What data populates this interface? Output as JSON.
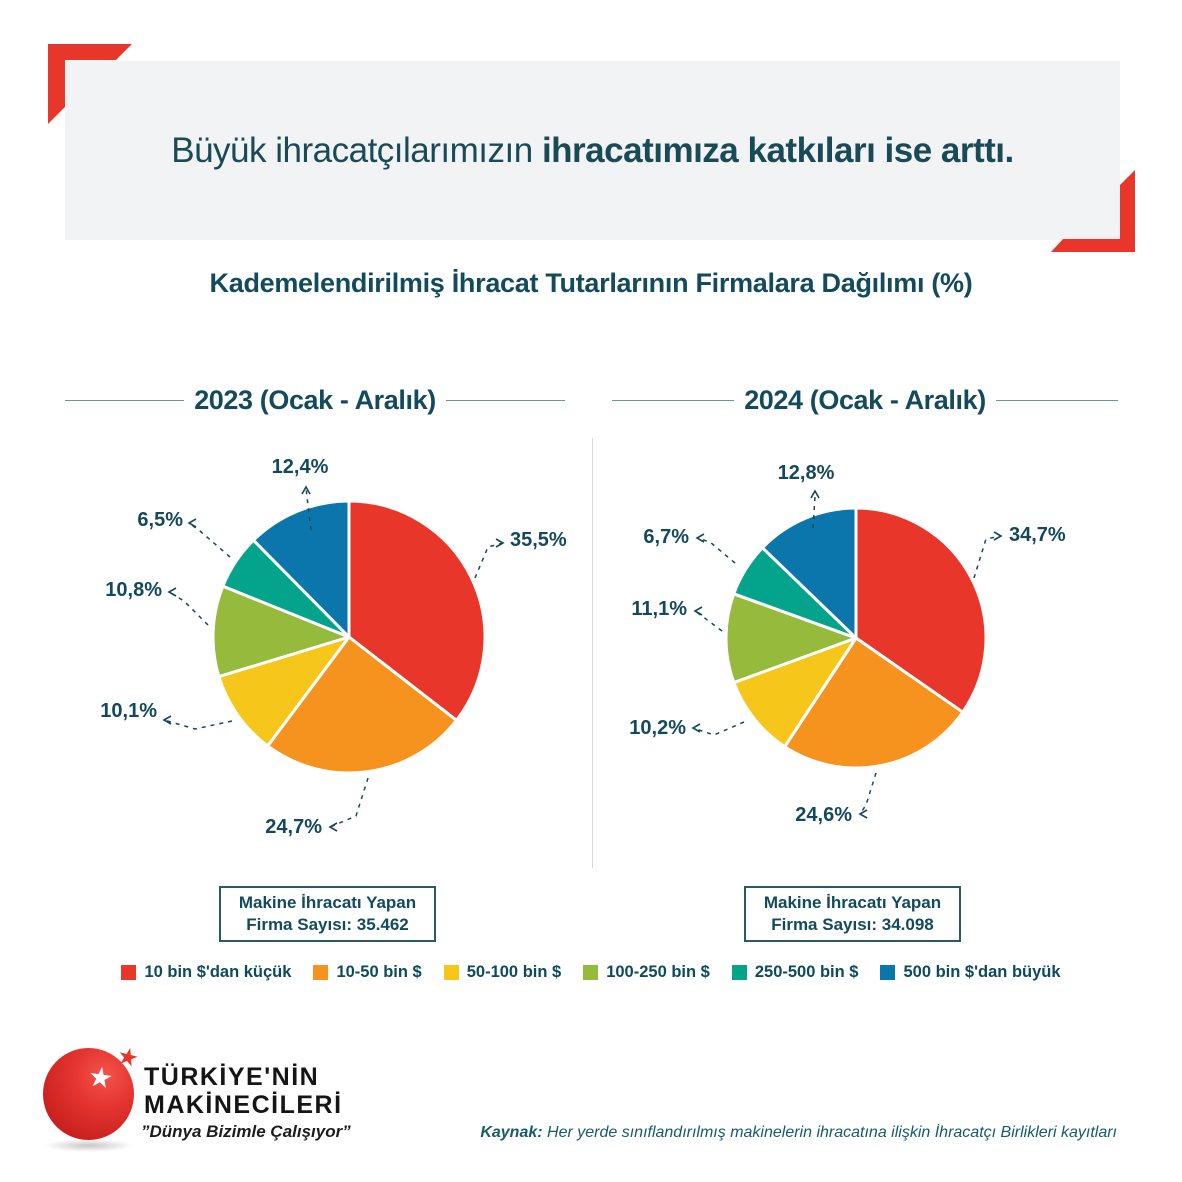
{
  "header": {
    "title_regular": "Büyük ihracatçılarımızın ",
    "title_bold": "ihracatımıza katkıları ise arttı."
  },
  "subtitle": "Kademelendirilmiş İhracat Tutarlarının Firmalara Dağılımı (%)",
  "chart_data": [
    {
      "type": "pie",
      "title": "2023 (Ocak - Aralık)",
      "unit": "%",
      "categories": [
        "10 bin $'dan küçük",
        "10-50 bin $",
        "50-100 bin $",
        "100-250 bin $",
        "250-500 bin $",
        "500 bin $'dan büyük"
      ],
      "values": [
        35.5,
        24.7,
        10.1,
        10.8,
        6.5,
        12.4
      ],
      "labels": [
        "35,5%",
        "24,7%",
        "10,1%",
        "10,8%",
        "6,5%",
        "12,4%"
      ],
      "colors": [
        "#e8362b",
        "#f6921e",
        "#f7c61a",
        "#95ba3c",
        "#04a48c",
        "#0b76ac"
      ],
      "start_angle": "top",
      "direction": "clockwise",
      "note": {
        "line1": "Makine İhracatı Yapan",
        "line2": "Firma Sayısı: 35.462"
      }
    },
    {
      "type": "pie",
      "title": "2024 (Ocak - Aralık)",
      "unit": "%",
      "categories": [
        "10 bin $'dan küçük",
        "10-50 bin $",
        "50-100 bin $",
        "100-250 bin $",
        "250-500 bin $",
        "500 bin $'dan büyük"
      ],
      "values": [
        34.7,
        24.6,
        10.2,
        11.1,
        6.7,
        12.8
      ],
      "labels": [
        "34,7%",
        "24,6%",
        "10,2%",
        "11,1%",
        "6,7%",
        "12,8%"
      ],
      "colors": [
        "#e8362b",
        "#f6921e",
        "#f7c61a",
        "#95ba3c",
        "#04a48c",
        "#0b76ac"
      ],
      "start_angle": "top",
      "direction": "clockwise",
      "note": {
        "line1": "Makine İhracatı Yapan",
        "line2": "Firma Sayısı: 34.098"
      }
    }
  ],
  "legend": [
    {
      "label": "10 bin $'dan küçük",
      "color": "#e8362b"
    },
    {
      "label": "10-50 bin $",
      "color": "#f6921e"
    },
    {
      "label": "50-100 bin $",
      "color": "#f7c61a"
    },
    {
      "label": "100-250 bin $",
      "color": "#95ba3c"
    },
    {
      "label": "250-500 bin $",
      "color": "#04a48c"
    },
    {
      "label": "500 bin $'dan büyük",
      "color": "#0b76ac"
    }
  ],
  "footer": {
    "logo_line1": "TÜRKİYE'NİN",
    "logo_line2": "MAKİNECİLERİ",
    "slogan": "”Dünya Bizimle Çalışıyor”",
    "source_label": "Kaynak:",
    "source_text": " Her yerde sınıflandırılmış makinelerin ihracatına ilişkin İhracatçı Birlikleri kayıtları"
  },
  "accent_colors": {
    "red_accent": "#e8362b",
    "header_bg": "#f1f3f5",
    "text_teal": "#14495c"
  }
}
